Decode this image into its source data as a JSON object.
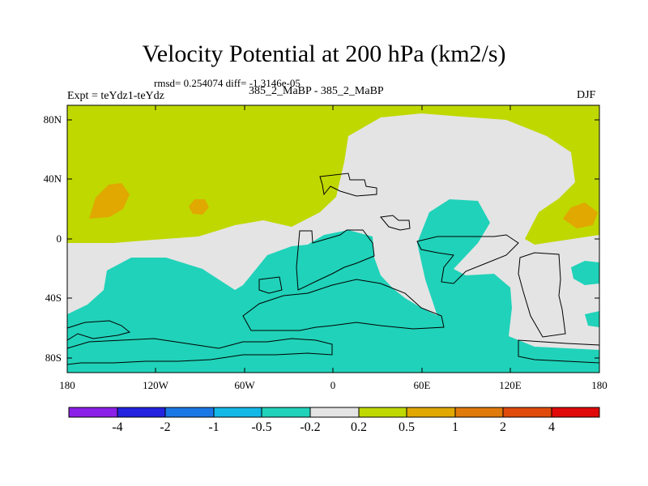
{
  "title": "Velocity Potential at 200 hPa (km2/s)",
  "stats_line": "rmsd= 0.254074 diff= -1.3146e-05",
  "experiment_label": "Expt = teYdz1-teYdz",
  "center_label": "385_2_MaBP - 385_2_MaBP",
  "season": "DJF",
  "y_tick_labels": [
    "80N",
    "40N",
    "0",
    "40S",
    "80S"
  ],
  "x_tick_labels": [
    "180",
    "120W",
    "60W",
    "0",
    "60E",
    "120E",
    "180"
  ],
  "colorbar": {
    "colors": [
      "#8B1FE8",
      "#2323E0",
      "#1A78E6",
      "#12B8E6",
      "#20D2B9",
      "#E4E4E4",
      "#BFD800",
      "#E0A800",
      "#E07A0A",
      "#E04A0A",
      "#E00A0A"
    ],
    "labels": [
      "-4",
      "-2",
      "-1",
      "-0.5",
      "-0.2",
      "0.2",
      "0.5",
      "1",
      "2",
      "4"
    ]
  },
  "map_colors": {
    "positive_bg": "#BFD800",
    "neutral": "#E4E4E4",
    "negative": "#20D2B9",
    "strong_positive": "#E0A800"
  }
}
